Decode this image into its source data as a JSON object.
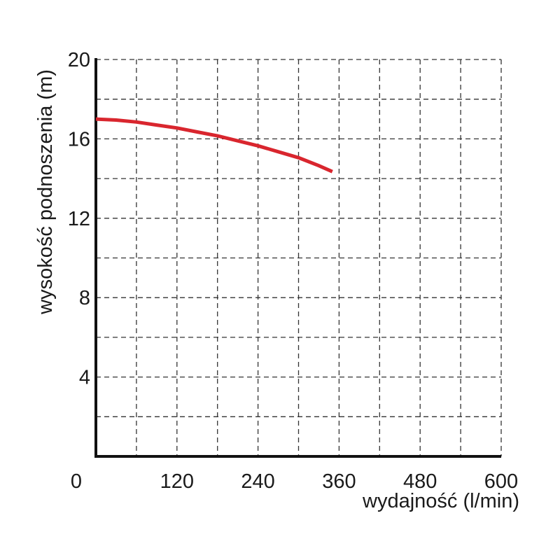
{
  "chart_data": {
    "type": "line",
    "title": "",
    "xlabel": "wydajność (l/min)",
    "ylabel": "wysokość podnoszenia (m)",
    "xlim": [
      0,
      600
    ],
    "ylim": [
      0,
      20
    ],
    "x_ticks": [
      0,
      120,
      240,
      360,
      480,
      600
    ],
    "x_tick_labels": [
      "0",
      "120",
      "240",
      "360",
      "480",
      "600"
    ],
    "y_ticks": [
      4,
      8,
      12,
      16,
      20
    ],
    "y_tick_labels": [
      "4",
      "8",
      "12",
      "16",
      "20"
    ],
    "x_grid_step": 60,
    "y_grid_step": 2,
    "grid": true,
    "legend": "none",
    "series": [
      {
        "color": "#d9262e",
        "x": [
          0,
          30,
          60,
          90,
          120,
          150,
          180,
          210,
          240,
          270,
          300,
          330,
          350
        ],
        "y": [
          17.0,
          16.95,
          16.85,
          16.7,
          16.55,
          16.35,
          16.15,
          15.9,
          15.65,
          15.35,
          15.05,
          14.65,
          14.35
        ]
      }
    ]
  }
}
